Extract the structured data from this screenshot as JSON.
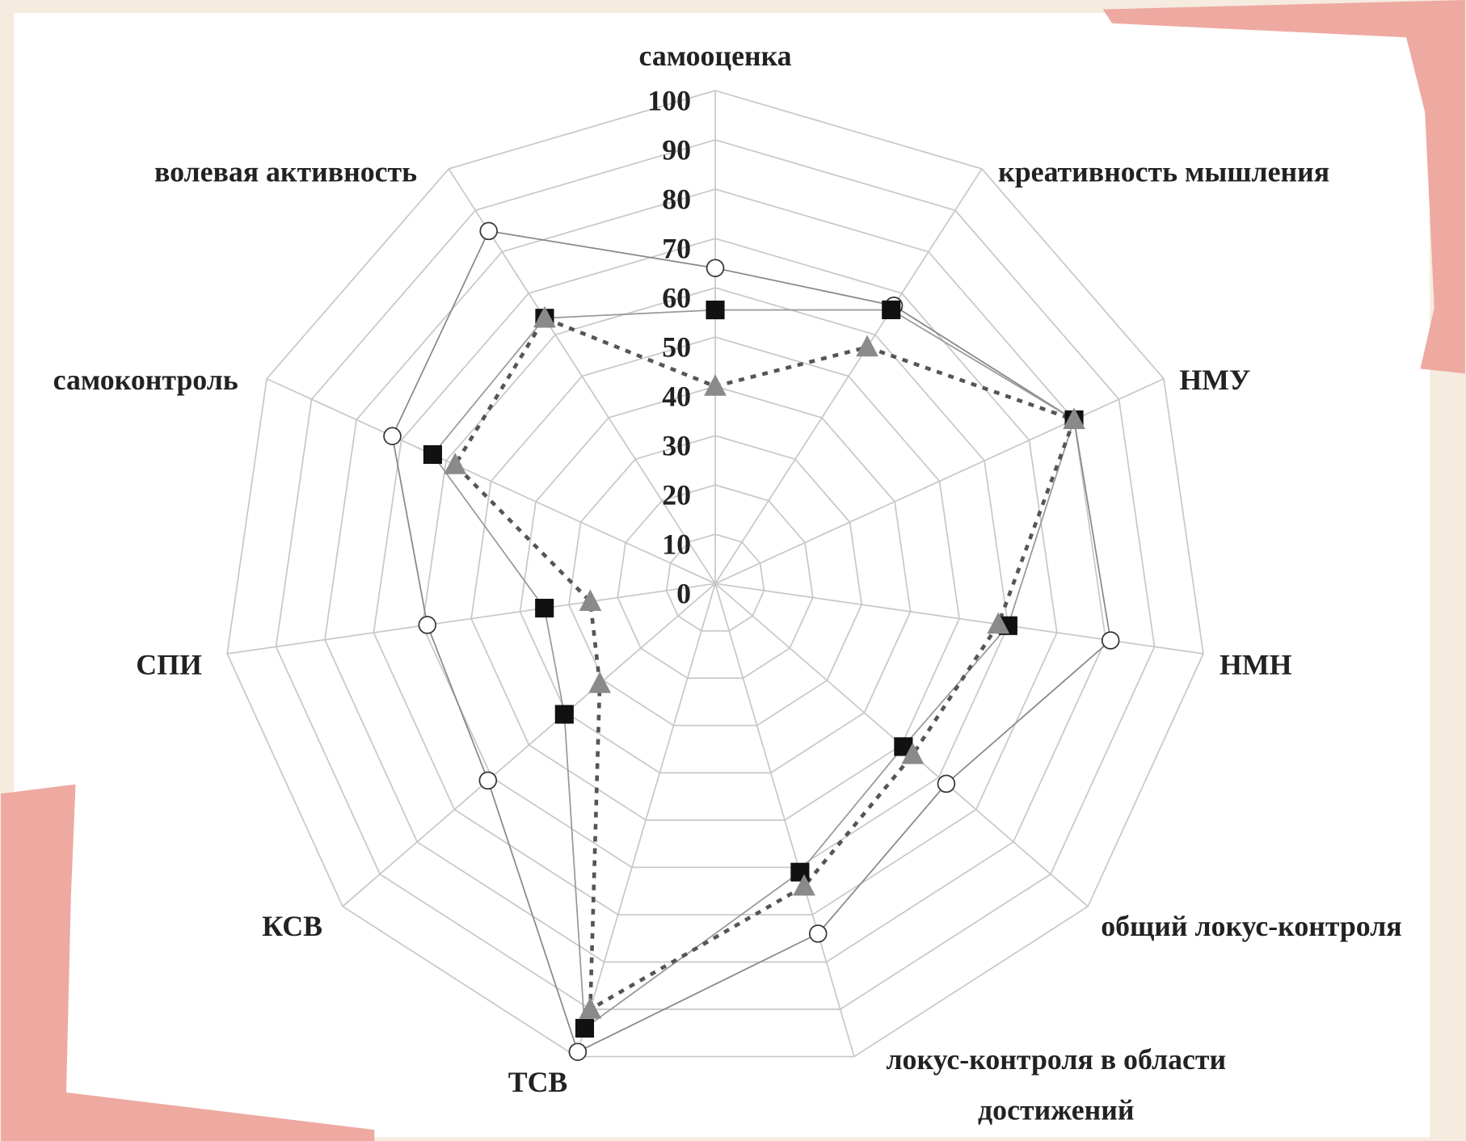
{
  "chart_data": {
    "type": "radar",
    "categories": [
      "самооценка",
      "креативность мышления",
      "НМУ",
      "НМН",
      "общий локус-контроля",
      "локус-контроля в области достижений",
      "ТСВ",
      "КСВ",
      "СПИ",
      "самоконтроль",
      "волевая активность"
    ],
    "ylim": [
      0,
      100
    ],
    "yticks": [
      0,
      10,
      20,
      30,
      40,
      50,
      60,
      70,
      80,
      90,
      100
    ],
    "grid": true,
    "series": [
      {
        "marker": "circle",
        "color": "#ffffff",
        "line_color": "#888888",
        "line_style": "solid",
        "values": [
          64,
          67,
          80,
          81,
          62,
          74,
          99,
          61,
          59,
          72,
          85
        ]
      },
      {
        "marker": "square",
        "color": "#111111",
        "line_color": "#999999",
        "line_style": "solid",
        "values": [
          55.5,
          66,
          80,
          60,
          50.5,
          61,
          94,
          40.5,
          35,
          63,
          64
        ]
      },
      {
        "marker": "triangle",
        "color": "#8a8a8a",
        "line_color": "#555555",
        "line_style": "dotted",
        "values": [
          40,
          57,
          80,
          58,
          53,
          64,
          90,
          31,
          25.6,
          58,
          64
        ]
      }
    ]
  }
}
